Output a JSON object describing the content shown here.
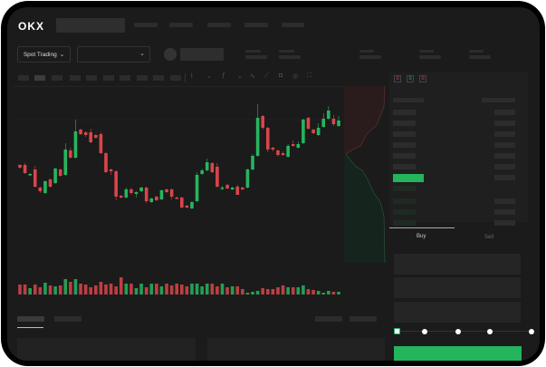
{
  "header": {
    "logo": "OKX"
  },
  "toolbar": {
    "market_type": "Spot Trading",
    "pair_select_chevron": "⌄",
    "spot_chevron": "⌄"
  },
  "trade_panel": {
    "tabs": [
      "Buy",
      "Sell"
    ],
    "active_tab": "Buy",
    "slider_steps": 5,
    "slider_value_percent": 0
  },
  "colors": {
    "up": "#26b55f",
    "down": "#d9454a",
    "background": "#1b1b1b",
    "accent": "#24b45c"
  },
  "chart_data": {
    "type": "candlestick",
    "grid": false,
    "ylim": [
      50,
      190
    ],
    "candles": [
      [
        118,
        119,
        114,
        115
      ],
      [
        118,
        120,
        108,
        109
      ],
      [
        107,
        109,
        106,
        108
      ],
      [
        113,
        117,
        93,
        94
      ],
      [
        93,
        94,
        87,
        89
      ],
      [
        87,
        101,
        86,
        100
      ],
      [
        102,
        103,
        93,
        94
      ],
      [
        98,
        115,
        97,
        114
      ],
      [
        113,
        114,
        105,
        106
      ],
      [
        107,
        142,
        106,
        135
      ],
      [
        134,
        137,
        125,
        126
      ],
      [
        126,
        168,
        125,
        155
      ],
      [
        157,
        158,
        151,
        152
      ],
      [
        154,
        155,
        149,
        151
      ],
      [
        154,
        158,
        142,
        143
      ],
      [
        151,
        152,
        147,
        148
      ],
      [
        152,
        154,
        130,
        131
      ],
      [
        131,
        132,
        109,
        110
      ],
      [
        113,
        114,
        107,
        111
      ],
      [
        111,
        112,
        79,
        83
      ],
      [
        84,
        85,
        81,
        82
      ],
      [
        82,
        93,
        81,
        91
      ],
      [
        91,
        93,
        85,
        87
      ],
      [
        86,
        89,
        82,
        88
      ],
      [
        89,
        94,
        88,
        93
      ],
      [
        93,
        94,
        76,
        78
      ],
      [
        77,
        82,
        76,
        81
      ],
      [
        83,
        84,
        78,
        79
      ],
      [
        80,
        91,
        79,
        90
      ],
      [
        91,
        92,
        87,
        88
      ],
      [
        91,
        92,
        80,
        83
      ],
      [
        82,
        83,
        80,
        81
      ],
      [
        82,
        83,
        70,
        71
      ],
      [
        73,
        74,
        70,
        71
      ],
      [
        70,
        78,
        69,
        77
      ],
      [
        78,
        110,
        77,
        107
      ],
      [
        108,
        114,
        107,
        112
      ],
      [
        112,
        125,
        111,
        121
      ],
      [
        120,
        121,
        109,
        110
      ],
      [
        116,
        120,
        93,
        94
      ],
      [
        92,
        95,
        90,
        93
      ],
      [
        96,
        97,
        91,
        92
      ],
      [
        91,
        94,
        90,
        93
      ],
      [
        94,
        96,
        85,
        85
      ],
      [
        93,
        94,
        90,
        91
      ],
      [
        93,
        114,
        92,
        113
      ],
      [
        113,
        130,
        112,
        128
      ],
      [
        128,
        185,
        127,
        170
      ],
      [
        172,
        173,
        157,
        159
      ],
      [
        159,
        160,
        132,
        135
      ],
      [
        137,
        138,
        133,
        135
      ],
      [
        134,
        135,
        127,
        129
      ],
      [
        131,
        133,
        128,
        129
      ],
      [
        127,
        141,
        126,
        139
      ],
      [
        141,
        145,
        138,
        139
      ],
      [
        137,
        144,
        136,
        141
      ],
      [
        142,
        169,
        141,
        168
      ],
      [
        170,
        171,
        157,
        158
      ],
      [
        157,
        158,
        152,
        153
      ],
      [
        151,
        164,
        150,
        159
      ],
      [
        160,
        175,
        159,
        169
      ],
      [
        169,
        183,
        168,
        178
      ],
      [
        169,
        173,
        161,
        163
      ],
      [
        161,
        172,
        160,
        167
      ]
    ],
    "volume": [
      11,
      11,
      7,
      11,
      8,
      13,
      10,
      9,
      10,
      17,
      14,
      17,
      12,
      11,
      8,
      10,
      14,
      11,
      12,
      9,
      19,
      12,
      12,
      7,
      12,
      8,
      12,
      12,
      9,
      12,
      10,
      12,
      11,
      9,
      12,
      12,
      9,
      12,
      12,
      9,
      12,
      8,
      9,
      9,
      6,
      2,
      3,
      4,
      7,
      6,
      6,
      8,
      10,
      8,
      8,
      8,
      10,
      6,
      5,
      4,
      2,
      4,
      3,
      3
    ]
  }
}
